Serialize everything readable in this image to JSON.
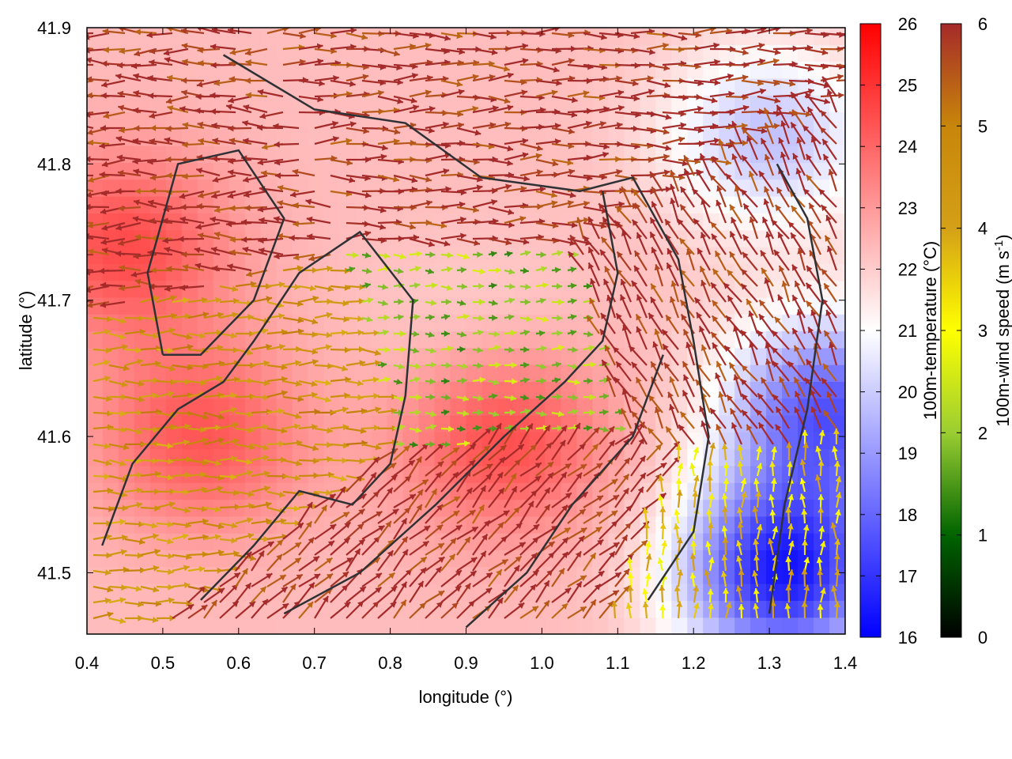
{
  "chart_data": {
    "type": "heatmap",
    "title": "",
    "xlabel": "longitude (°)",
    "ylabel": "latitude (°)",
    "xlim": [
      0.4,
      1.4
    ],
    "ylim": [
      41.455,
      41.9
    ],
    "xticks": [
      "0.4",
      "0.5",
      "0.6",
      "0.7",
      "0.8",
      "0.9",
      "1.0",
      "1.1",
      "1.2",
      "1.3",
      "1.4"
    ],
    "yticks": [
      "41.5",
      "41.6",
      "41.7",
      "41.8",
      "41.9"
    ],
    "xtick_values": [
      0.4,
      0.5,
      0.6,
      0.7,
      0.8,
      0.9,
      1.0,
      1.1,
      1.2,
      1.3,
      1.4
    ],
    "ytick_values": [
      41.5,
      41.6,
      41.7,
      41.8,
      41.9
    ],
    "temperature_colorbar": {
      "label": "100m-temperature (°C)",
      "range": [
        16,
        26
      ],
      "ticks": [
        "16",
        "17",
        "18",
        "19",
        "20",
        "21",
        "22",
        "23",
        "24",
        "25",
        "26"
      ],
      "colors": [
        "#0000ff",
        "#ffffff",
        "#ff0000"
      ]
    },
    "wind_colorbar": {
      "label_main": "100m-wind speed (m s",
      "label_sup": "-1",
      "label_end": ")",
      "range": [
        0,
        6
      ],
      "ticks": [
        "0",
        "1",
        "2",
        "3",
        "4",
        "5",
        "6"
      ],
      "colors": [
        "#000000",
        "#006400",
        "#9acd32",
        "#ffff00",
        "#d4a017",
        "#c8860a",
        "#a52a2a"
      ]
    },
    "temperature_field": {
      "background_c": 22.3,
      "features": [
        {
          "name": "warm-west",
          "lon": 0.45,
          "lat": 41.74,
          "temp_c": 24.5
        },
        {
          "name": "warm-southwest",
          "lon": 0.55,
          "lat": 41.6,
          "temp_c": 24.3
        },
        {
          "name": "warm-south-band",
          "lon": 0.95,
          "lat": 41.6,
          "temp_c": 24.6
        },
        {
          "name": "cool-northeast",
          "lon": 1.3,
          "lat": 41.82,
          "temp_c": 19.8
        },
        {
          "name": "cold-southeast",
          "lon": 1.32,
          "lat": 41.5,
          "temp_c": 16.6
        },
        {
          "name": "cold-east",
          "lon": 1.38,
          "lat": 41.62,
          "temp_c": 17.8
        },
        {
          "name": "mild-center",
          "lon": 0.92,
          "lat": 41.67,
          "temp_c": 21.8
        }
      ]
    },
    "wind_field": {
      "regimes": [
        {
          "region": "northwest",
          "direction": "easterly",
          "speed_ms": 6
        },
        {
          "region": "north-central",
          "direction": "westerly",
          "speed_ms": 6
        },
        {
          "region": "center-west",
          "direction": "westerly",
          "speed_ms": 4.5
        },
        {
          "region": "center",
          "direction": "westerly",
          "speed_ms": 2
        },
        {
          "region": "south-central",
          "direction": "south-westerly",
          "speed_ms": 6
        },
        {
          "region": "east",
          "direction": "south-easterly",
          "speed_ms": 6
        },
        {
          "region": "southeast",
          "direction": "southerly",
          "speed_ms": 3.5
        }
      ]
    }
  }
}
